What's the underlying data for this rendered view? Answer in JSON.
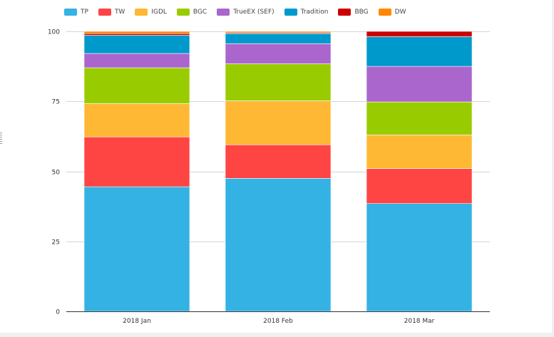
{
  "chart_data": {
    "type": "bar",
    "stacked": true,
    "categories": [
      "2018 Jan",
      "2018 Feb",
      "2018 Mar"
    ],
    "series": [
      {
        "name": "TP",
        "color": "#33b2e3",
        "values": [
          44.5,
          47.5,
          38.5
        ]
      },
      {
        "name": "TW",
        "color": "#ff4444",
        "values": [
          17.8,
          12.0,
          12.5
        ]
      },
      {
        "name": "IGDL",
        "color": "#ffb833",
        "values": [
          11.9,
          15.7,
          12.0
        ]
      },
      {
        "name": "BGC",
        "color": "#99cc00",
        "values": [
          12.8,
          13.2,
          11.8
        ]
      },
      {
        "name": "TrueEX (SEF)",
        "color": "#aa66cc",
        "values": [
          5.1,
          7.2,
          12.7
        ]
      },
      {
        "name": "Tradition",
        "color": "#0099cc",
        "values": [
          6.5,
          3.6,
          10.6
        ]
      },
      {
        "name": "BBG",
        "color": "#cc0000",
        "values": [
          0.6,
          0.3,
          1.9
        ]
      },
      {
        "name": "DW",
        "color": "#ff8800",
        "values": [
          0.8,
          0.5,
          0.0
        ]
      }
    ],
    "yticks": [
      0,
      25,
      50,
      75,
      100
    ],
    "ylim": [
      0,
      100
    ],
    "grid": true,
    "legend": "top-left",
    "title": "",
    "xlabel": "",
    "ylabel": ""
  }
}
